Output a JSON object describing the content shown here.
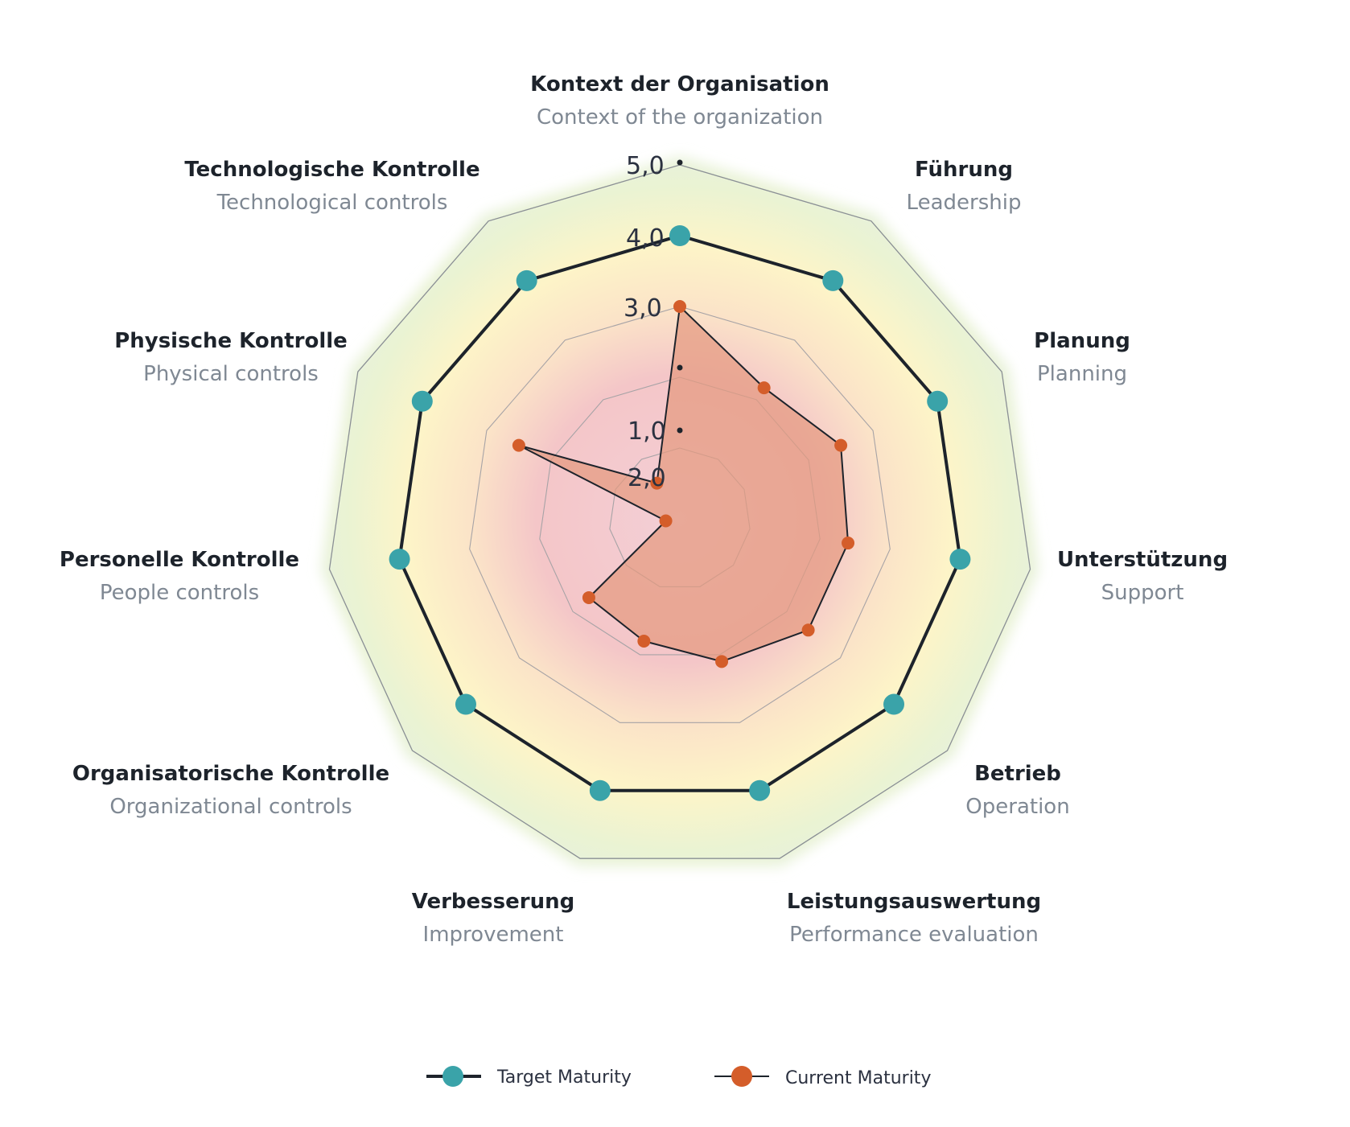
{
  "chart_data": {
    "type": "radar",
    "axes": [
      {
        "de": "Kontext der Organisation",
        "en": "Context of the organization"
      },
      {
        "de": "Führung",
        "en": "Leadership"
      },
      {
        "de": "Planung",
        "en": "Planning"
      },
      {
        "de": "Unterstützung",
        "en": "Support"
      },
      {
        "de": "Betrieb",
        "en": "Operation"
      },
      {
        "de": "Leistungsauswertung",
        "en": "Performance evaluation"
      },
      {
        "de": "Verbesserung",
        "en": "Improvement"
      },
      {
        "de": "Organisatorische Kontrolle",
        "en": "Organizational controls"
      },
      {
        "de": "Personelle Kontrolle",
        "en": "People controls"
      },
      {
        "de": "Physische Kontrolle",
        "en": "Physical controls"
      },
      {
        "de": "Technologische Kontrolle",
        "en": "Technological controls"
      }
    ],
    "tick_labels": [
      "5,0",
      "4,0",
      "3,0",
      "1,0",
      "2,0"
    ],
    "rlim": [
      0,
      5
    ],
    "series": [
      {
        "name": "Target Maturity",
        "color": "#3aa3a9",
        "values": [
          4,
          4,
          4,
          4,
          4,
          4,
          4,
          4,
          4,
          4,
          4
        ]
      },
      {
        "name": "Current Maturity",
        "color": "#d45d2a",
        "values": [
          3,
          2.2,
          2.5,
          2.4,
          2.4,
          2.1,
          1.8,
          1.7,
          0.2,
          2.5,
          0.6
        ]
      }
    ],
    "legend_position": "bottom-center",
    "grid": true
  }
}
